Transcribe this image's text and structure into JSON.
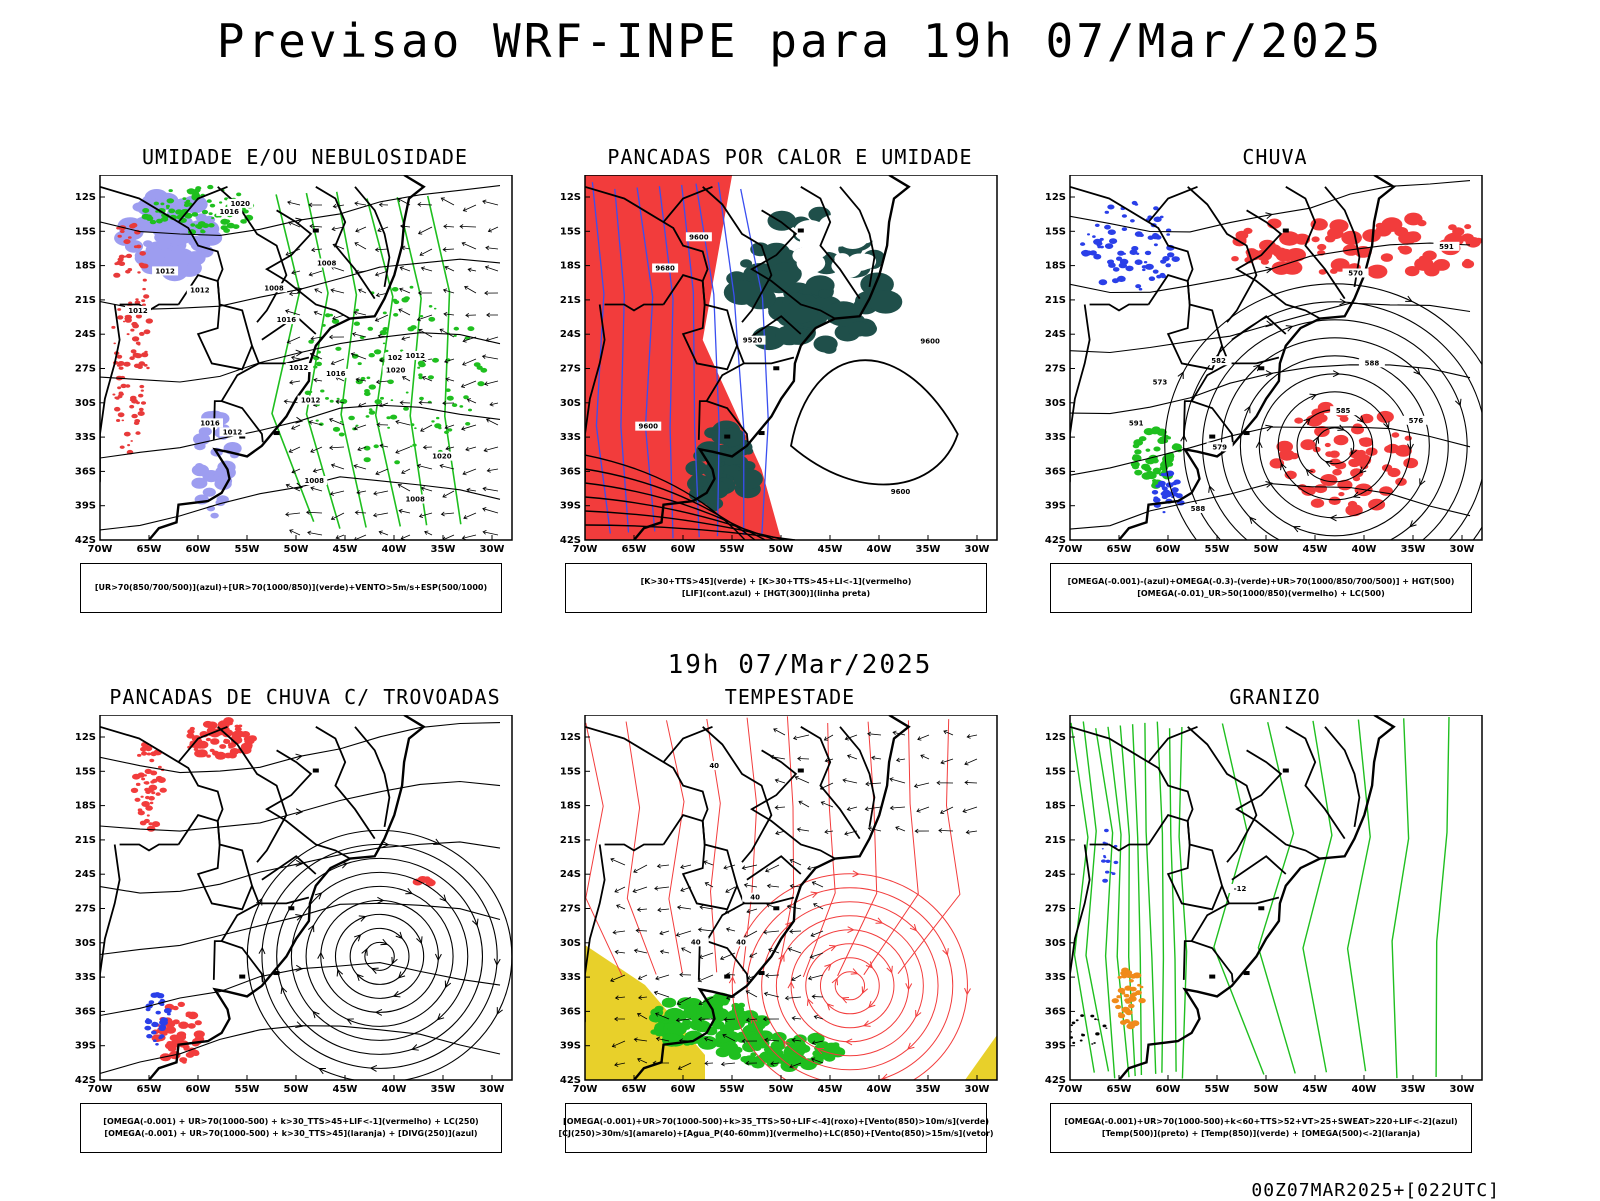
{
  "page": {
    "main_title": "Previsao WRF-INPE  para 19h 07/Mar/2025",
    "mid_title": "19h 07/Mar/2025",
    "footer_stamp": "00Z07MAR2025+[022UTC]"
  },
  "axes": {
    "lat_labels": [
      "12S",
      "15S",
      "18S",
      "21S",
      "24S",
      "27S",
      "30S",
      "33S",
      "36S",
      "39S",
      "42S"
    ],
    "lon_labels": [
      "70W",
      "65W",
      "60W",
      "55W",
      "50W",
      "45W",
      "40W",
      "35W",
      "30W"
    ]
  },
  "panels": [
    {
      "title": "UMIDADE E/OU NEBULOSIDADE",
      "legend": [
        "[UR>70(850/700/500)](azul)+[UR>70(1000/850)](verde)+VENTO>5m/s+ESP(500/1000)"
      ],
      "contour_labels": [
        "1012",
        "1012",
        "1016",
        "1016",
        "1012",
        "1008",
        "1012",
        "1016",
        "1020",
        "1020",
        "1020",
        "1024",
        "1008",
        "1012",
        "1012",
        "1008",
        "1008",
        "1012",
        "1016"
      ],
      "colors": {
        "blue": "#9d9df0",
        "green": "#1fbf1f",
        "red": "#e83a3a"
      }
    },
    {
      "title": "PANCADAS POR CALOR E UMIDADE",
      "legend": [
        "[K>30+TTS>45](verde) + [K>30+TTS>45+LI<-1](vermelho)",
        "[LIF](cont.azul) + [HGT(300)](linha preta)"
      ],
      "contour_labels": [
        "9600",
        "9600",
        "9520",
        "9600",
        "9600",
        "9680"
      ],
      "colors": {
        "green": "#1f4f4a",
        "red": "#f23c3c",
        "blue": "#3a4ff0"
      }
    },
    {
      "title": "CHUVA",
      "legend": [
        "[OMEGA(-0.001)-(azul)+OMEGA(-0.3)-(verde)+UR>70(1000/850/700/500)] + HGT(500)",
        "[OMEGA(-0.01)_UR>50(1000/850)(vermelho) + LC(500)"
      ],
      "contour_labels": [
        "588",
        "585",
        "582",
        "579",
        "576",
        "570",
        "573",
        "591",
        "588",
        "591"
      ],
      "colors": {
        "red": "#f23c3c",
        "green": "#1fbf1f",
        "blue": "#2a3fe8"
      }
    },
    {
      "title": "PANCADAS DE CHUVA C/ TROVOADAS",
      "legend": [
        "[OMEGA(-0.001) + UR>70(1000-500) + k>30_TTS>45+LIF<-1](vermelho) + LC(250)",
        "[OMEGA(-0.001) + UR>70(1000-500) + k>30_TTS>45](laranja) + [DIVG(250)](azul)"
      ],
      "contour_labels": [],
      "colors": {
        "red": "#f23c3c",
        "blue": "#2a3fe8",
        "orange": "#f08a1a"
      }
    },
    {
      "title": "TEMPESTADE",
      "legend": [
        "[OMEGA(-0.001)+UR>70(1000-500)+k>35_TTS>50+LIF<-4](roxo)+[Vento(850)>10m/s](verde)",
        "[CJ(250)>30m/s](amarelo)+[Agua_P(40-60mm)](vermelho)+LC(850)+[Vento(850)>15m/s](vetor)"
      ],
      "contour_labels": [
        "40",
        "40",
        "40",
        "40"
      ],
      "colors": {
        "green": "#1fbf1f",
        "yellow": "#e8d02a",
        "red": "#f23c3c"
      }
    },
    {
      "title": "GRANIZO",
      "legend": [
        "[OMEGA(-0.001)+UR>70(1000-500)+k<60+TTS>52+VT>25+SWEAT>220+LIF<-2](azul)",
        "[Temp(500)](preto) + [Temp(850)](verde) + [OMEGA(500)<-2](laranja)"
      ],
      "contour_labels": [
        "-12"
      ],
      "colors": {
        "green": "#1fbf1f",
        "orange": "#f08a1a",
        "blue": "#2a3fe8"
      }
    }
  ]
}
